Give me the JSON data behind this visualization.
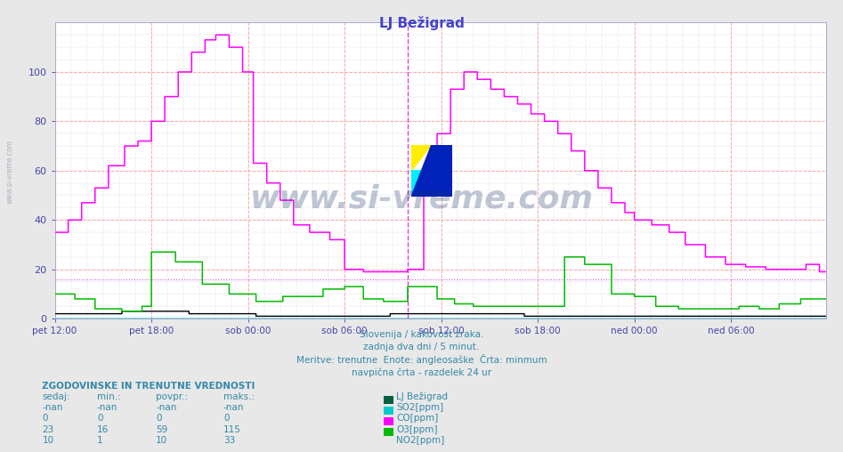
{
  "title": "LJ Bežigrad",
  "fig_bg": "#e8e8e8",
  "plot_bg": "#ffffff",
  "title_color": "#4444cc",
  "tick_color": "#4444aa",
  "text_color": "#3388aa",
  "ylim": [
    0,
    120
  ],
  "yticks": [
    0,
    20,
    40,
    60,
    80,
    100
  ],
  "xtick_labels": [
    "pet 12:00",
    "pet 18:00",
    "sob 00:00",
    "sob 06:00",
    "sob 12:00",
    "sob 18:00",
    "ned 00:00",
    "ned 06:00"
  ],
  "xtick_pos": [
    0,
    72,
    144,
    216,
    288,
    360,
    432,
    504
  ],
  "n_points": 576,
  "subtitle1": "Slovenija / kakovost zraka.",
  "subtitle2": "zadnja dva dni / 5 minut.",
  "subtitle3": "Meritve: trenutne  Enote: angleosaške  Črta: minmum",
  "subtitle4": "navpična črta - razdelek 24 ur",
  "table_header": "ZGODOVINSKE IN TRENUTNE VREDNOSTI",
  "col_headers": [
    "sedaj:",
    "min.:",
    "povpr.:",
    "maks.:"
  ],
  "col_station": "LJ Bežigrad",
  "rows": [
    [
      "-nan",
      "-nan",
      "-nan",
      "-nan",
      "SO2[ppm]",
      "#006040"
    ],
    [
      "0",
      "0",
      "0",
      "0",
      "CO[ppm]",
      "#00cccc"
    ],
    [
      "23",
      "16",
      "59",
      "115",
      "O3[ppm]",
      "#ff00ff"
    ],
    [
      "10",
      "1",
      "10",
      "33",
      "NO2[ppm]",
      "#00bb00"
    ]
  ],
  "min_line_value": 16,
  "min_line_color": "#dd44dd",
  "vline_x": 263,
  "vline_color": "#dd44dd",
  "so2_color": "#000000",
  "co_color": "#00cccc",
  "o3_color": "#ff00ff",
  "no2_color": "#00bb00",
  "hgrid_color": "#ffaaaa",
  "vgrid_color": "#ffaaaa",
  "fine_grid_color": "#e0e0e8",
  "watermark_color": "#1a3366",
  "left_wm_color": "#8888aa",
  "logo_yellow": "#ffee00",
  "logo_cyan": "#00eeff",
  "logo_blue": "#0022bb"
}
